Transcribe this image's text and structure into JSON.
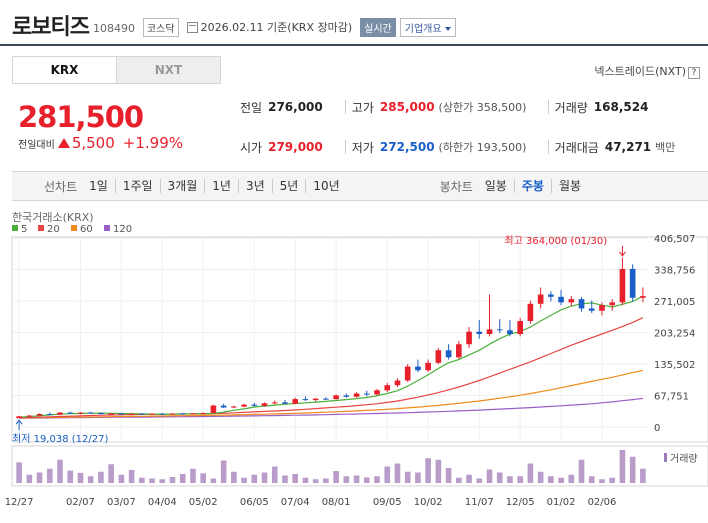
{
  "header": {
    "stock_name": "로보티즈",
    "stock_code": "108490",
    "market": "코스닥",
    "date_text": "2026.02.11 기준(KRX 장마감)",
    "realtime_label": "실시간",
    "company_overview_label": "기업개요"
  },
  "exchange_tabs": [
    {
      "label": "KRX",
      "active": true
    },
    {
      "label": "NXT",
      "active": false
    }
  ],
  "nextrade_link": "넥스트레이드(NXT)",
  "nextrade_arrow": "?",
  "price": {
    "current": "281,500",
    "change_label": "전일대비",
    "change_value": "5,500",
    "change_pct": "+1.99%"
  },
  "stats": {
    "prev_close_label": "전일",
    "prev_close": "276,000",
    "high_label": "고가",
    "high": "285,000",
    "upper_limit": "(상한가 358,500)",
    "volume_label": "거래량",
    "volume": "168,524",
    "open_label": "시가",
    "open": "279,000",
    "low_label": "저가",
    "low": "272,500",
    "lower_limit": "(하한가 193,500)",
    "amount_label": "거래대금",
    "amount": "47,271",
    "amount_unit": "백만"
  },
  "line_chart_bar": {
    "label": "선차트",
    "periods": [
      "1일",
      "1주일",
      "3개월",
      "1년",
      "3년",
      "5년",
      "10년"
    ]
  },
  "candle_chart_bar": {
    "label": "봉차트",
    "periods": [
      "일봉",
      "주봉",
      "월봉"
    ],
    "selected": "주봉"
  },
  "colors": {
    "up": "#e8202c",
    "down": "#1a5fc7",
    "ma5": "#4caf3a",
    "ma20": "#e84545",
    "ma60": "#f08a1c",
    "ma120": "#9a5fc7"
  },
  "chart_data": {
    "type": "candlestick",
    "source_label": "한국거래소(KRX)",
    "legend": [
      {
        "label": "5",
        "color": "#4caf3a"
      },
      {
        "label": "20",
        "color": "#e84545"
      },
      {
        "label": "60",
        "color": "#f08a1c"
      },
      {
        "label": "120",
        "color": "#9a5fc7"
      }
    ],
    "y_ticks": [
      "406,507",
      "338,756",
      "271,005",
      "203,254",
      "135,502",
      "67,751",
      "0"
    ],
    "y_tick_values": [
      406507,
      338756,
      271005,
      203254,
      135502,
      67751,
      0
    ],
    "y_range": [
      0,
      406507
    ],
    "x_labels": [
      "12/27",
      "02/07",
      "03/07",
      "04/04",
      "05/02",
      "06/05",
      "07/04",
      "08/01",
      "09/05",
      "10/02",
      "11/07",
      "12/05",
      "01/02",
      "02/06"
    ],
    "x_label_indices": [
      0,
      6,
      10,
      14,
      18,
      23,
      27,
      31,
      36,
      40,
      45,
      49,
      53,
      57
    ],
    "max_annotation": "최고 364,000 (01/30)",
    "min_annotation": "최저 19,038 (12/27)",
    "volume_legend": "거래량",
    "candles": [
      {
        "o": 19038,
        "h": 24000,
        "l": 19038,
        "c": 23000
      },
      {
        "o": 23000,
        "h": 26000,
        "l": 21500,
        "c": 24500
      },
      {
        "o": 24500,
        "h": 29000,
        "l": 23500,
        "c": 28000
      },
      {
        "o": 28000,
        "h": 31000,
        "l": 25500,
        "c": 26500
      },
      {
        "o": 26500,
        "h": 32000,
        "l": 25500,
        "c": 31000
      },
      {
        "o": 31000,
        "h": 33000,
        "l": 28000,
        "c": 29000
      },
      {
        "o": 29000,
        "h": 32000,
        "l": 27000,
        "c": 31000
      },
      {
        "o": 31000,
        "h": 33000,
        "l": 29000,
        "c": 30000
      },
      {
        "o": 30000,
        "h": 31500,
        "l": 27500,
        "c": 28500
      },
      {
        "o": 28500,
        "h": 30000,
        "l": 26500,
        "c": 29000
      },
      {
        "o": 29000,
        "h": 30500,
        "l": 27000,
        "c": 27500
      },
      {
        "o": 27500,
        "h": 29500,
        "l": 26000,
        "c": 28500
      },
      {
        "o": 28500,
        "h": 30000,
        "l": 27000,
        "c": 27800
      },
      {
        "o": 27800,
        "h": 29500,
        "l": 26500,
        "c": 28600
      },
      {
        "o": 28600,
        "h": 30000,
        "l": 27200,
        "c": 28200
      },
      {
        "o": 28200,
        "h": 29800,
        "l": 26800,
        "c": 29000
      },
      {
        "o": 29000,
        "h": 30500,
        "l": 27500,
        "c": 28400
      },
      {
        "o": 28400,
        "h": 30200,
        "l": 27500,
        "c": 29500
      },
      {
        "o": 29500,
        "h": 31500,
        "l": 28000,
        "c": 30000
      },
      {
        "o": 30000,
        "h": 48000,
        "l": 29500,
        "c": 46000
      },
      {
        "o": 46000,
        "h": 50000,
        "l": 41000,
        "c": 42000
      },
      {
        "o": 42000,
        "h": 46000,
        "l": 40500,
        "c": 44000
      },
      {
        "o": 44000,
        "h": 50000,
        "l": 42500,
        "c": 48000
      },
      {
        "o": 48000,
        "h": 52000,
        "l": 44500,
        "c": 45500
      },
      {
        "o": 45500,
        "h": 53000,
        "l": 44000,
        "c": 51000
      },
      {
        "o": 51000,
        "h": 57000,
        "l": 48500,
        "c": 53000
      },
      {
        "o": 53000,
        "h": 58000,
        "l": 49000,
        "c": 50000
      },
      {
        "o": 50000,
        "h": 63000,
        "l": 49000,
        "c": 60000
      },
      {
        "o": 60000,
        "h": 66000,
        "l": 56000,
        "c": 58000
      },
      {
        "o": 58000,
        "h": 62000,
        "l": 55000,
        "c": 61000
      },
      {
        "o": 61000,
        "h": 64000,
        "l": 58000,
        "c": 60000
      },
      {
        "o": 60000,
        "h": 70000,
        "l": 59000,
        "c": 68000
      },
      {
        "o": 68000,
        "h": 72000,
        "l": 63000,
        "c": 65000
      },
      {
        "o": 65000,
        "h": 75000,
        "l": 63000,
        "c": 72000
      },
      {
        "o": 72000,
        "h": 78000,
        "l": 66000,
        "c": 70000
      },
      {
        "o": 70000,
        "h": 82000,
        "l": 68000,
        "c": 79000
      },
      {
        "o": 79000,
        "h": 95000,
        "l": 75000,
        "c": 90000
      },
      {
        "o": 90000,
        "h": 105000,
        "l": 86000,
        "c": 100000
      },
      {
        "o": 100000,
        "h": 135000,
        "l": 97000,
        "c": 130000
      },
      {
        "o": 130000,
        "h": 145000,
        "l": 118000,
        "c": 122000
      },
      {
        "o": 122000,
        "h": 145000,
        "l": 118000,
        "c": 138000
      },
      {
        "o": 138000,
        "h": 170000,
        "l": 135000,
        "c": 165000
      },
      {
        "o": 165000,
        "h": 178000,
        "l": 145000,
        "c": 150000
      },
      {
        "o": 150000,
        "h": 185000,
        "l": 146000,
        "c": 178000
      },
      {
        "o": 178000,
        "h": 215000,
        "l": 170000,
        "c": 205000
      },
      {
        "o": 205000,
        "h": 230000,
        "l": 190000,
        "c": 200000
      },
      {
        "o": 200000,
        "h": 285000,
        "l": 195000,
        "c": 210000
      },
      {
        "o": 210000,
        "h": 232000,
        "l": 202000,
        "c": 208000
      },
      {
        "o": 208000,
        "h": 230000,
        "l": 195000,
        "c": 200000
      },
      {
        "o": 200000,
        "h": 235000,
        "l": 195000,
        "c": 228000
      },
      {
        "o": 228000,
        "h": 272000,
        "l": 222000,
        "c": 265000
      },
      {
        "o": 265000,
        "h": 300000,
        "l": 255000,
        "c": 285000
      },
      {
        "o": 285000,
        "h": 292000,
        "l": 270000,
        "c": 280000
      },
      {
        "o": 280000,
        "h": 295000,
        "l": 262000,
        "c": 268000
      },
      {
        "o": 268000,
        "h": 282000,
        "l": 260000,
        "c": 275000
      },
      {
        "o": 275000,
        "h": 280000,
        "l": 248000,
        "c": 255000
      },
      {
        "o": 255000,
        "h": 272000,
        "l": 245000,
        "c": 250000
      },
      {
        "o": 250000,
        "h": 268000,
        "l": 240000,
        "c": 262000
      },
      {
        "o": 262000,
        "h": 275000,
        "l": 250000,
        "c": 268000
      },
      {
        "o": 268000,
        "h": 364000,
        "l": 262000,
        "c": 340000
      },
      {
        "o": 340000,
        "h": 350000,
        "l": 270000,
        "c": 278000
      },
      {
        "o": 278000,
        "h": 300000,
        "l": 268000,
        "c": 281500
      }
    ],
    "ma5": [
      21000,
      22500,
      24000,
      26000,
      27500,
      28500,
      29000,
      29600,
      29800,
      29500,
      29000,
      28600,
      28100,
      27700,
      27700,
      27800,
      28000,
      28300,
      28700,
      29000,
      32000,
      36000,
      39000,
      43000,
      45000,
      47000,
      49000,
      50500,
      52000,
      53500,
      55000,
      57000,
      59000,
      61000,
      63500,
      67000,
      72000,
      78000,
      88000,
      100000,
      112000,
      126000,
      138000,
      145000,
      155000,
      165000,
      178000,
      190000,
      200000,
      205000,
      215000,
      228000,
      240000,
      252000,
      260000,
      265000,
      267000,
      262000,
      258000,
      264000,
      270000,
      281500
    ],
    "ma20": [
      20000,
      20500,
      21000,
      21800,
      22500,
      23300,
      24000,
      24700,
      25300,
      25800,
      26300,
      26700,
      27000,
      27300,
      27600,
      27800,
      28000,
      28200,
      28400,
      28600,
      29500,
      30500,
      31500,
      32500,
      33500,
      34500,
      35500,
      36700,
      38000,
      39500,
      41000,
      42500,
      44000,
      46000,
      48000,
      50000,
      53000,
      56000,
      60000,
      64000,
      69000,
      74000,
      80000,
      86000,
      93000,
      100000,
      108000,
      116000,
      124000,
      132000,
      140000,
      149000,
      158000,
      167000,
      176000,
      184000,
      192000,
      200000,
      208000,
      216000,
      225000,
      235000
    ],
    "ma60": [
      19500,
      19800,
      20100,
      20400,
      20700,
      21000,
      21300,
      21600,
      21900,
      22200,
      22500,
      22800,
      23100,
      23400,
      23700,
      24000,
      24300,
      24600,
      24900,
      25200,
      25600,
      26000,
      26500,
      27000,
      27600,
      28200,
      28800,
      29500,
      30200,
      31000,
      31800,
      32700,
      33600,
      34600,
      35600,
      36700,
      38000,
      39500,
      41000,
      42700,
      44500,
      46500,
      48700,
      51000,
      53500,
      56000,
      59000,
      62000,
      65000,
      68500,
      72000,
      76000,
      80000,
      84500,
      89000,
      93500,
      98000,
      102500,
      107000,
      112000,
      117000,
      122000
    ],
    "ma120": [
      19000,
      19200,
      19400,
      19600,
      19800,
      20000,
      20200,
      20400,
      20600,
      20800,
      21000,
      21200,
      21400,
      21600,
      21800,
      22000,
      22200,
      22400,
      22600,
      22800,
      23000,
      23300,
      23600,
      23900,
      24200,
      24500,
      24900,
      25300,
      25700,
      26100,
      26500,
      27000,
      27500,
      28000,
      28500,
      29000,
      29600,
      30200,
      30800,
      31500,
      32200,
      33000,
      33800,
      34600,
      35500,
      36400,
      37400,
      38400,
      39500,
      40600,
      41800,
      43000,
      44300,
      45600,
      47000,
      48500,
      50000,
      52000,
      54000,
      56500,
      59000,
      61500
    ],
    "volumes": [
      55,
      22,
      28,
      38,
      62,
      33,
      27,
      18,
      30,
      50,
      22,
      35,
      14,
      12,
      10,
      16,
      24,
      38,
      26,
      12,
      60,
      30,
      14,
      22,
      28,
      44,
      20,
      24,
      14,
      10,
      12,
      32,
      18,
      20,
      15,
      18,
      44,
      52,
      30,
      28,
      66,
      62,
      40,
      14,
      22,
      12,
      36,
      28,
      18,
      18,
      52,
      30,
      18,
      14,
      22,
      62,
      18,
      10,
      14,
      88,
      70,
      38
    ]
  }
}
